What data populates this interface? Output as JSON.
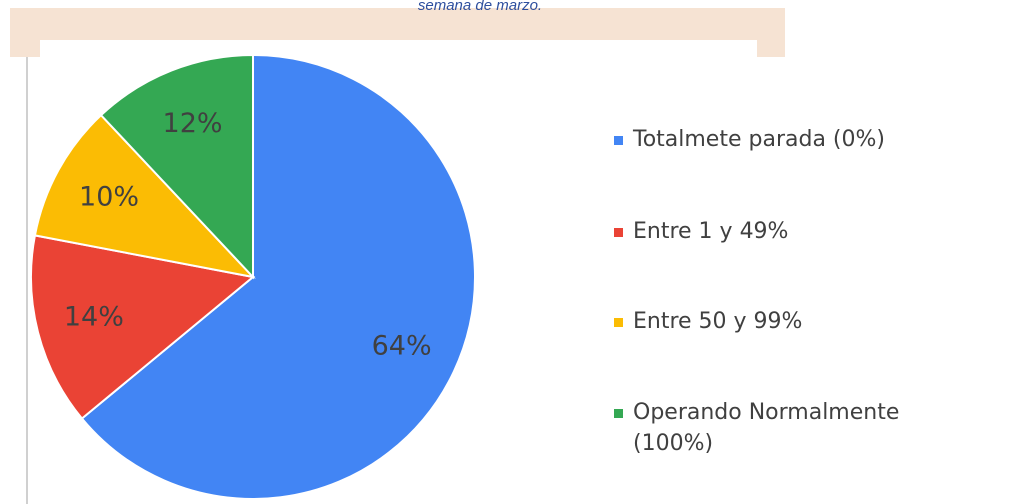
{
  "chart_data": {
    "type": "pie",
    "title": "semana de marzo.",
    "categories": [
      "Totalmete parada (0%)",
      "Entre 1 y 49%",
      "Entre 50 y 99%",
      "Operando Normalmente (100%)"
    ],
    "values": [
      64,
      14,
      10,
      12
    ],
    "value_labels": [
      "64%",
      "14%",
      "10%",
      "12%"
    ],
    "colors": [
      "#4285f4",
      "#ea4335",
      "#fbbc04",
      "#34a853"
    ],
    "legend": "right"
  }
}
